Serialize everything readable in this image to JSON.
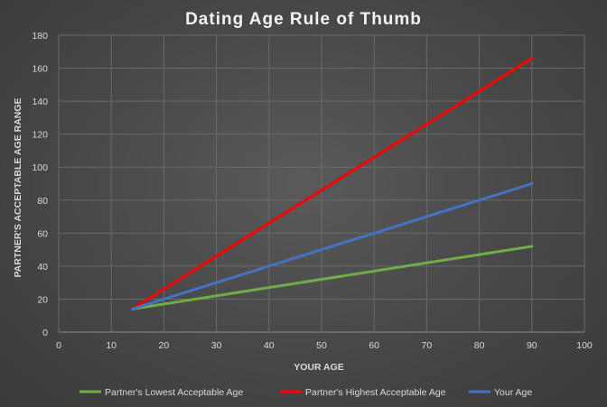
{
  "chart_data": {
    "type": "line",
    "title": "Dating Age Rule of Thumb",
    "xlabel": "YOUR AGE",
    "ylabel": "PARTNER'S ACCEPTABLE AGE RANGE",
    "xlim": [
      0,
      100
    ],
    "ylim": [
      0,
      180
    ],
    "xticks": [
      0,
      10,
      20,
      30,
      40,
      50,
      60,
      70,
      80,
      90,
      100
    ],
    "yticks": [
      0,
      20,
      40,
      60,
      80,
      100,
      120,
      140,
      160,
      180
    ],
    "grid": true,
    "legend_position": "bottom",
    "x": [
      14,
      90
    ],
    "series": [
      {
        "name": "Partner's Lowest Acceptable Age",
        "color": "#70ad47",
        "values": [
          14,
          52
        ]
      },
      {
        "name": "Partner's Highest Acceptable Age",
        "color": "#ff0000",
        "values": [
          14,
          166
        ]
      },
      {
        "name": "Your Age",
        "color": "#4472c4",
        "values": [
          14,
          90
        ]
      }
    ]
  }
}
